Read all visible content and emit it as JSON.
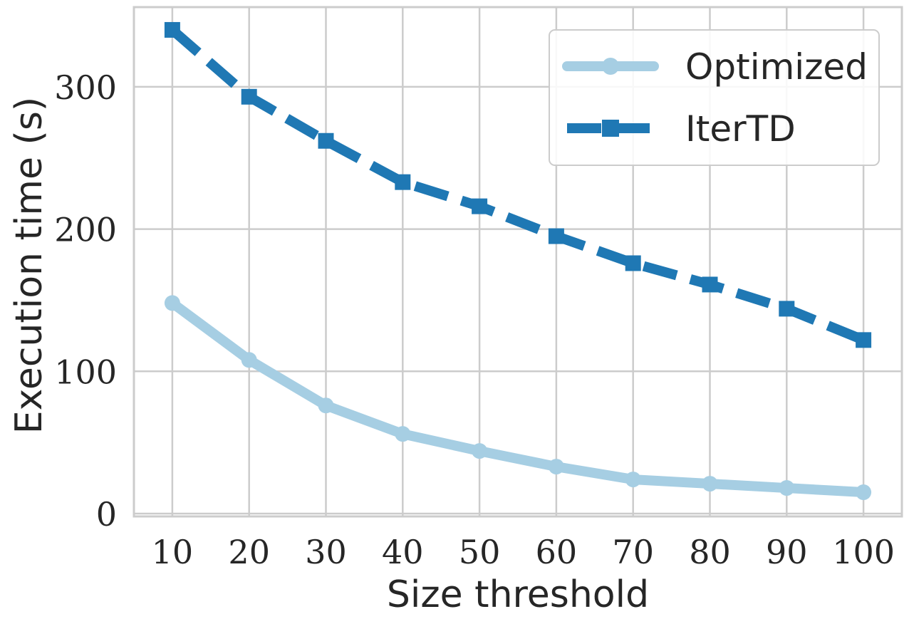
{
  "chart_data": {
    "type": "line",
    "xlabel": "Size threshold",
    "ylabel": "Execution time (s)",
    "x": [
      10,
      20,
      30,
      40,
      50,
      60,
      70,
      80,
      90,
      100
    ],
    "xticks": [
      "10",
      "20",
      "30",
      "40",
      "50",
      "60",
      "70",
      "80",
      "90",
      "100"
    ],
    "yticks": [
      "0",
      "100",
      "200",
      "300"
    ],
    "xlim": [
      5,
      105
    ],
    "ylim": [
      -2,
      356
    ],
    "grid": true,
    "legend_position": "top-right",
    "series": [
      {
        "name": "Optimized",
        "values": [
          148,
          108,
          76,
          56,
          44,
          33,
          24,
          21,
          18,
          15
        ],
        "color": "#a6cee3",
        "line_style": "solid",
        "marker": "circle"
      },
      {
        "name": "IterTD",
        "values": [
          340,
          293,
          262,
          233,
          216,
          195,
          176,
          161,
          144,
          122
        ],
        "color": "#1f78b4",
        "line_style": "dashed",
        "marker": "square"
      }
    ]
  }
}
